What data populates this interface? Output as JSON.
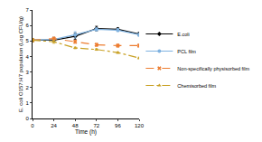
{
  "chart_data": {
    "type": "line",
    "x_label": "Time (h)",
    "y_label": "E. coli O157:H7 population (Log CFU/g)",
    "x": [
      0,
      24,
      48,
      72,
      96,
      120
    ],
    "xlim": [
      0,
      120
    ],
    "xticks": [
      0,
      24,
      48,
      72,
      96,
      120
    ],
    "ylim": [
      0,
      7
    ],
    "yticks": [
      0,
      1,
      2,
      3,
      4,
      5,
      6,
      7
    ],
    "grid": false,
    "legend": "right",
    "series": [
      {
        "name": "E.coli",
        "color": "#000000",
        "marker": "diamond",
        "line_style": "solid",
        "values": [
          5.05,
          5.05,
          5.3,
          5.8,
          5.75,
          5.45
        ],
        "error": [
          0.1,
          0.1,
          0.2,
          0.15,
          0.1,
          0.1
        ]
      },
      {
        "name": "PCL film",
        "color": "#7fb2e0",
        "marker": "circle",
        "line_style": "solid",
        "values": [
          5.05,
          5.1,
          5.4,
          5.75,
          5.7,
          5.4
        ],
        "error": [
          0.1,
          0.15,
          0.2,
          0.1,
          0.1,
          0.1
        ]
      },
      {
        "name": "Non-specifically physisorbed film",
        "color": "#ed7d31",
        "marker": "x",
        "line_style": "dash",
        "values": [
          5.05,
          5.15,
          4.95,
          4.75,
          4.7,
          4.7
        ],
        "error": [
          0.1,
          0.1,
          0.1,
          0.1,
          0.1,
          0.1
        ]
      },
      {
        "name": "Chemisorbed film",
        "color": "#c9a227",
        "marker": "triangle-up",
        "line_style": "dashdot",
        "values": [
          5.05,
          4.95,
          4.55,
          4.45,
          4.25,
          3.9
        ],
        "error": [
          0.1,
          0.1,
          0.05,
          0.05,
          0.05,
          0.05
        ]
      }
    ]
  }
}
